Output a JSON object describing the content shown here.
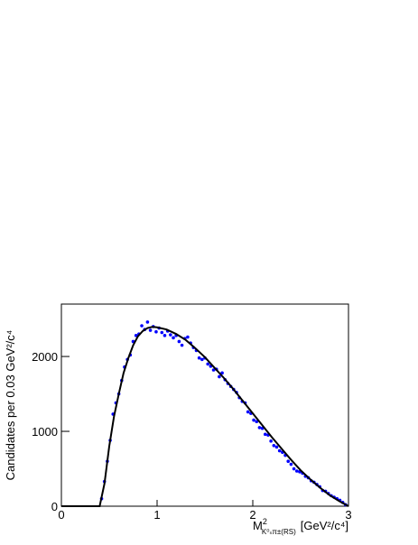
{
  "chart_data": {
    "type": "scatter",
    "ylabel": "Candidates per 0.03 GeV²/c⁴",
    "xlabel": {
      "base": "M",
      "sup": "2",
      "sub": "K⁰ₛπ±(RS)",
      "unit": "[GeV²/c⁴]"
    },
    "xlim": [
      0,
      3
    ],
    "ylim": [
      0,
      2700
    ],
    "xticks": [
      0,
      1,
      2,
      3
    ],
    "yticks": [
      0,
      1000,
      2000
    ],
    "series": [
      {
        "kind": "points",
        "color": "#0000ff",
        "x": [
          0.42,
          0.45,
          0.48,
          0.51,
          0.54,
          0.57,
          0.6,
          0.63,
          0.66,
          0.69,
          0.72,
          0.75,
          0.78,
          0.81,
          0.84,
          0.87,
          0.9,
          0.93,
          0.96,
          0.99,
          1.02,
          1.05,
          1.08,
          1.11,
          1.14,
          1.17,
          1.2,
          1.23,
          1.26,
          1.29,
          1.32,
          1.35,
          1.38,
          1.41,
          1.44,
          1.47,
          1.5,
          1.53,
          1.56,
          1.59,
          1.62,
          1.65,
          1.68,
          1.71,
          1.74,
          1.77,
          1.8,
          1.83,
          1.86,
          1.89,
          1.92,
          1.95,
          1.98,
          2.01,
          2.04,
          2.07,
          2.1,
          2.13,
          2.16,
          2.19,
          2.22,
          2.25,
          2.28,
          2.31,
          2.34,
          2.37,
          2.4,
          2.43,
          2.46,
          2.49,
          2.52,
          2.55,
          2.58,
          2.61,
          2.64,
          2.67,
          2.7,
          2.73,
          2.76,
          2.79,
          2.82,
          2.85,
          2.88,
          2.91,
          2.94,
          2.97
        ],
        "values": [
          100,
          330,
          600,
          880,
          1230,
          1380,
          1500,
          1680,
          1860,
          1960,
          2020,
          2200,
          2280,
          2300,
          2410,
          2360,
          2460,
          2350,
          2400,
          2330,
          2380,
          2320,
          2280,
          2340,
          2290,
          2250,
          2280,
          2200,
          2150,
          2240,
          2260,
          2180,
          2120,
          2080,
          1980,
          1960,
          1980,
          1900,
          1870,
          1820,
          1830,
          1730,
          1780,
          1690,
          1640,
          1600,
          1560,
          1520,
          1450,
          1400,
          1380,
          1260,
          1240,
          1150,
          1130,
          1050,
          1040,
          960,
          950,
          870,
          810,
          790,
          740,
          720,
          680,
          600,
          560,
          500,
          470,
          460,
          440,
          400,
          380,
          340,
          320,
          290,
          260,
          210,
          200,
          170,
          140,
          120,
          100,
          80,
          50,
          20
        ]
      },
      {
        "kind": "line",
        "color": "#000000",
        "x": [
          0,
          0.4,
          0.45,
          0.5,
          0.55,
          0.6,
          0.65,
          0.7,
          0.75,
          0.8,
          0.85,
          0.9,
          0.95,
          1.0,
          1.1,
          1.2,
          1.3,
          1.4,
          1.5,
          1.6,
          1.7,
          1.8,
          1.9,
          2.0,
          2.1,
          2.2,
          2.3,
          2.4,
          2.5,
          2.6,
          2.7,
          2.8,
          2.9,
          3.0
        ],
        "values": [
          0,
          0,
          300,
          800,
          1200,
          1500,
          1780,
          1980,
          2150,
          2270,
          2340,
          2380,
          2395,
          2390,
          2360,
          2300,
          2220,
          2110,
          1990,
          1850,
          1710,
          1560,
          1400,
          1240,
          1080,
          920,
          770,
          620,
          480,
          360,
          250,
          150,
          70,
          0
        ]
      }
    ]
  }
}
